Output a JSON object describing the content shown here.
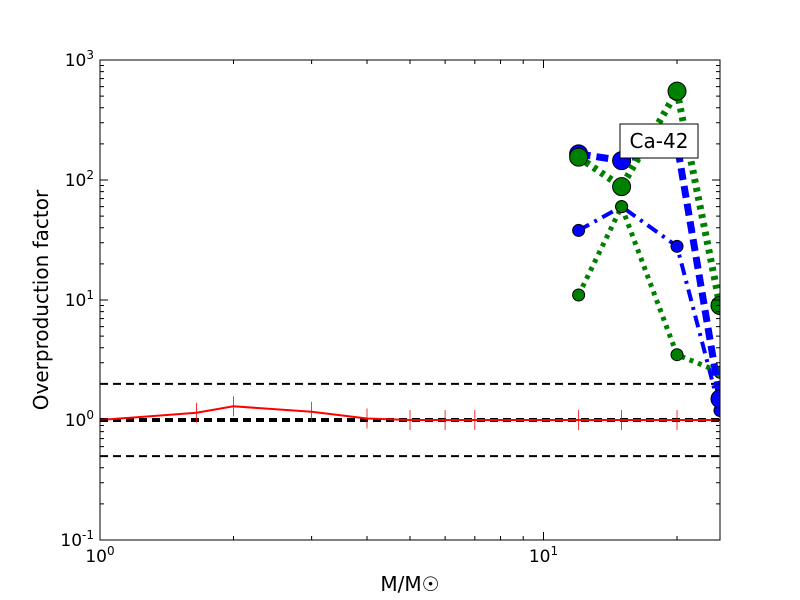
{
  "chart_data": {
    "type": "line",
    "xlabel": "M/M☉",
    "ylabel": "Overproduction factor",
    "annotation": "Ca-42",
    "x_scale": "log",
    "y_scale": "log",
    "xlim": [
      1,
      25
    ],
    "ylim": [
      0.1,
      1000
    ],
    "x_ticks": [
      {
        "value": 1,
        "base": "10",
        "exp": "0"
      },
      {
        "value": 10,
        "base": "10",
        "exp": "1"
      }
    ],
    "y_ticks": [
      {
        "value": 0.1,
        "base": "10",
        "exp": "-1"
      },
      {
        "value": 1,
        "base": "10",
        "exp": "0"
      },
      {
        "value": 10,
        "base": "10",
        "exp": "1"
      },
      {
        "value": 100,
        "base": "10",
        "exp": "2"
      },
      {
        "value": 1000,
        "base": "10",
        "exp": "3"
      }
    ],
    "reference_lines": [
      0.5,
      1,
      2
    ],
    "series": [
      {
        "color": "#ff0000",
        "style": "solid",
        "width": 2,
        "marker": "errorbar",
        "x": [
          1,
          1.65,
          2,
          3,
          4,
          5,
          6,
          7,
          12,
          15,
          20,
          25
        ],
        "y": [
          1.0,
          1.15,
          1.3,
          1.17,
          1.03,
          1.0,
          1.0,
          1.0,
          1.0,
          1.0,
          1.0,
          1.0
        ]
      },
      {
        "color": "#0000ff",
        "style": "dashdot",
        "width": 4,
        "marker_r": 6,
        "x": [
          12,
          15,
          20,
          25
        ],
        "y": [
          38,
          60,
          28,
          1.2
        ]
      },
      {
        "color": "#008000",
        "style": "dotted",
        "width": 5,
        "marker_r": 6,
        "x": [
          12,
          15,
          20,
          25
        ],
        "y": [
          11,
          60,
          3.5,
          2.5
        ]
      },
      {
        "color": "#0000ff",
        "style": "dashed",
        "width": 7,
        "marker_r": 9,
        "x": [
          12,
          15,
          20,
          25
        ],
        "y": [
          165,
          145,
          200,
          1.5
        ]
      },
      {
        "color": "#008000",
        "style": "dotted",
        "width": 7,
        "marker_r": 9,
        "x": [
          12,
          15,
          20,
          25
        ],
        "y": [
          155,
          88,
          550,
          9
        ]
      }
    ]
  }
}
